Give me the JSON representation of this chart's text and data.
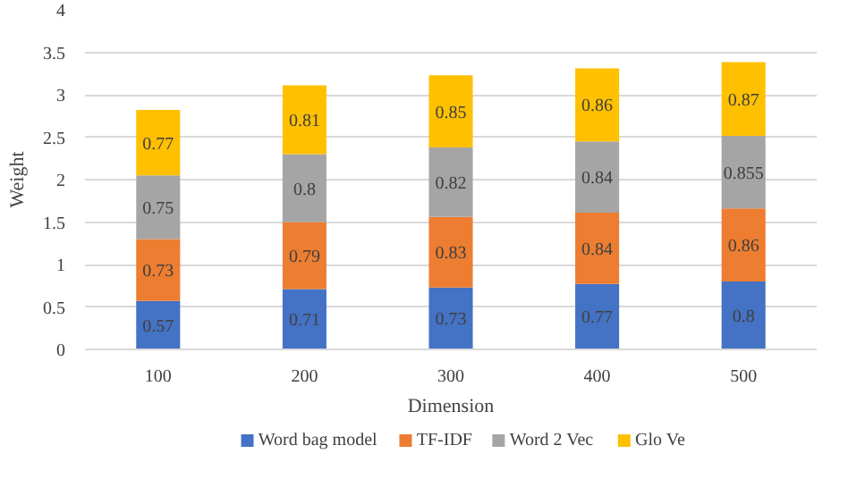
{
  "chart_data": {
    "type": "bar",
    "stacked": true,
    "xlabel": "Dimension",
    "ylabel": "Weight",
    "categories": [
      "100",
      "200",
      "300",
      "400",
      "500"
    ],
    "series": [
      {
        "name": "Word bag model",
        "color": "#4472c4",
        "values": [
          0.57,
          0.71,
          0.73,
          0.77,
          0.8
        ]
      },
      {
        "name": "TF-IDF",
        "color": "#ed7d31",
        "values": [
          0.73,
          0.79,
          0.83,
          0.84,
          0.86
        ]
      },
      {
        "name": "Word 2 Vec",
        "color": "#a5a5a5",
        "values": [
          0.75,
          0.8,
          0.82,
          0.84,
          0.855
        ]
      },
      {
        "name": "Glo Ve",
        "color": "#ffc000",
        "values": [
          0.77,
          0.81,
          0.85,
          0.86,
          0.87
        ]
      }
    ],
    "ylim": [
      0,
      4
    ],
    "yticks": [
      0,
      0.5,
      1,
      1.5,
      2,
      2.5,
      3,
      3.5,
      4
    ],
    "grid": "y",
    "legend": "bottom",
    "data_labels": true
  }
}
